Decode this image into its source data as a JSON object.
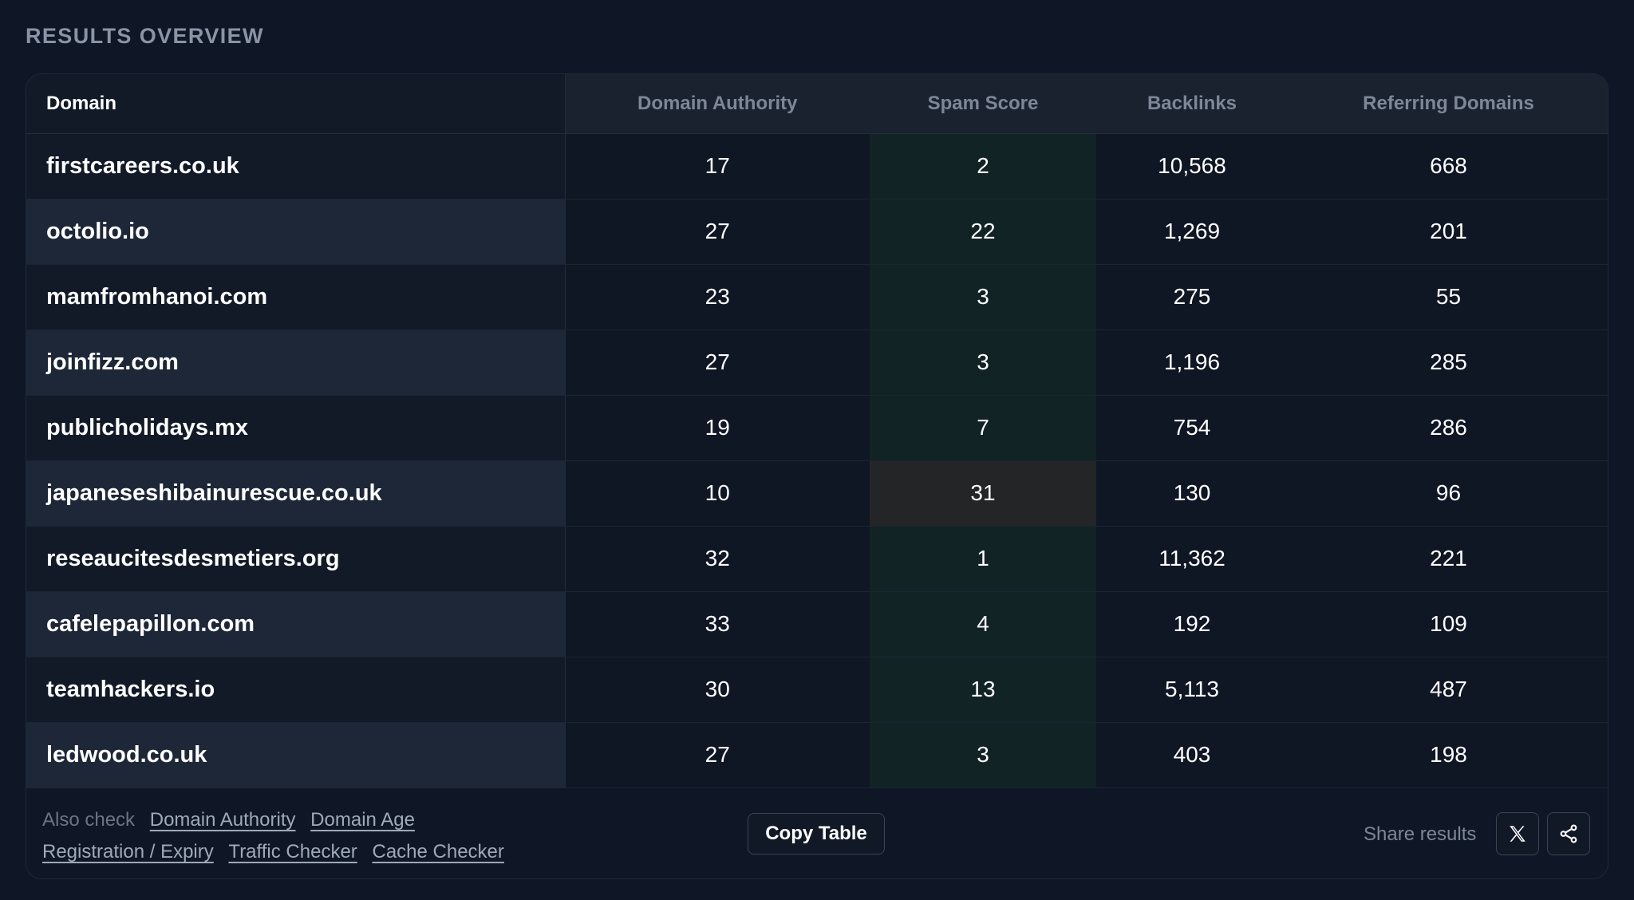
{
  "section_title": "RESULTS OVERVIEW",
  "table": {
    "headers": [
      "Domain",
      "Domain Authority",
      "Spam Score",
      "Backlinks",
      "Referring Domains"
    ],
    "rows": [
      [
        "firstcareers.co.uk",
        "17",
        "2",
        "10,568",
        "668"
      ],
      [
        "octolio.io",
        "27",
        "22",
        "1,269",
        "201"
      ],
      [
        "mamfromhanoi.com",
        "23",
        "3",
        "275",
        "55"
      ],
      [
        "joinfizz.com",
        "27",
        "3",
        "1,196",
        "285"
      ],
      [
        "publicholidays.mx",
        "19",
        "7",
        "754",
        "286"
      ],
      [
        "japaneseshibainurescue.co.uk",
        "10",
        "31",
        "130",
        "96"
      ],
      [
        "reseaucitesdesmetiers.org",
        "32",
        "1",
        "11,362",
        "221"
      ],
      [
        "cafelepapillon.com",
        "33",
        "4",
        "192",
        "109"
      ],
      [
        "teamhackers.io",
        "30",
        "13",
        "5,113",
        "487"
      ],
      [
        "ledwood.co.uk",
        "27",
        "3",
        "403",
        "198"
      ]
    ]
  },
  "footer": {
    "also_check_label": "Also check",
    "links": [
      "Domain Authority",
      "Domain Age",
      "Registration / Expiry",
      "Traffic Checker",
      "Cache Checker"
    ],
    "copy_button": "Copy Table",
    "share_label": "Share results",
    "icons": [
      "x-logo-icon",
      "share-icon"
    ]
  },
  "colors": {
    "background": "#0f1727",
    "spam_low": "#122326",
    "spam_high": "#232527",
    "muted_text": "#7d8797"
  }
}
